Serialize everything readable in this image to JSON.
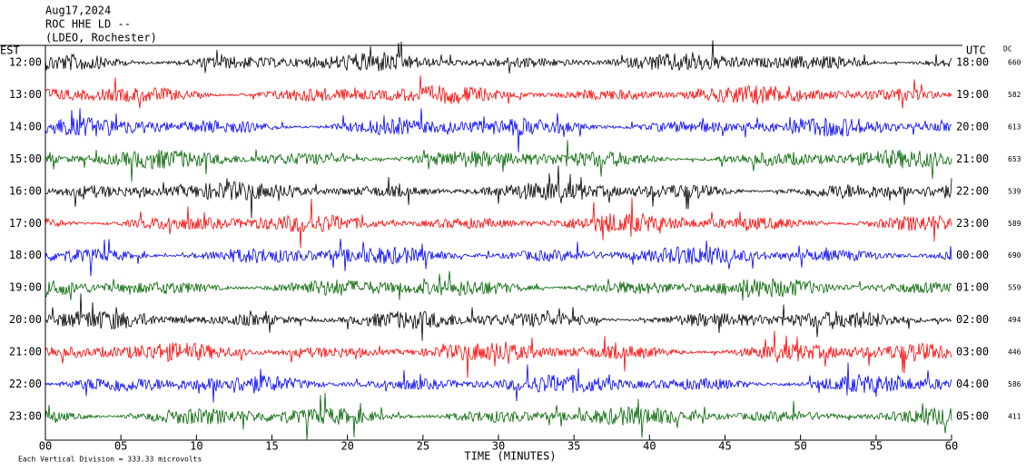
{
  "chart_data": {
    "type": "helicorder",
    "title_lines": [
      "Aug17,2024",
      "ROC HHE LD --",
      "(LDEO, Rochester)"
    ],
    "left_axis_label": "EST",
    "right_axis_label": "UTC",
    "dc_label": "DC",
    "xlabel": "TIME (MINUTES)",
    "footnote": "Each Vertical Division =  333.33 microvolts",
    "xlim": [
      0,
      60
    ],
    "xticks": [
      {
        "value": 0,
        "label": "00"
      },
      {
        "value": 5,
        "label": "05"
      },
      {
        "value": 10,
        "label": "10"
      },
      {
        "value": 15,
        "label": "15"
      },
      {
        "value": 20,
        "label": "20"
      },
      {
        "value": 25,
        "label": "25"
      },
      {
        "value": 30,
        "label": "30"
      },
      {
        "value": 35,
        "label": "35"
      },
      {
        "value": 40,
        "label": "40"
      },
      {
        "value": 45,
        "label": "45"
      },
      {
        "value": 50,
        "label": "50"
      },
      {
        "value": 55,
        "label": "55"
      },
      {
        "value": 60,
        "label": "60"
      }
    ],
    "rows": [
      {
        "est": "12:00",
        "utc": "18:00",
        "dc": 660,
        "color": "#000000"
      },
      {
        "est": "13:00",
        "utc": "19:00",
        "dc": 582,
        "color": "#ff0000"
      },
      {
        "est": "14:00",
        "utc": "20:00",
        "dc": 613,
        "color": "#0000ff"
      },
      {
        "est": "15:00",
        "utc": "21:00",
        "dc": 653,
        "color": "#006400"
      },
      {
        "est": "16:00",
        "utc": "22:00",
        "dc": 539,
        "color": "#000000"
      },
      {
        "est": "17:00",
        "utc": "23:00",
        "dc": 589,
        "color": "#ff0000"
      },
      {
        "est": "18:00",
        "utc": "00:00",
        "dc": 690,
        "color": "#0000ff"
      },
      {
        "est": "19:00",
        "utc": "01:00",
        "dc": 559,
        "color": "#006400"
      },
      {
        "est": "20:00",
        "utc": "02:00",
        "dc": 494,
        "color": "#000000"
      },
      {
        "est": "21:00",
        "utc": "03:00",
        "dc": 446,
        "color": "#ff0000"
      },
      {
        "est": "22:00",
        "utc": "04:00",
        "dc": 586,
        "color": "#0000ff"
      },
      {
        "est": "23:00",
        "utc": "05:00",
        "dc": 411,
        "color": "#006400"
      }
    ]
  }
}
